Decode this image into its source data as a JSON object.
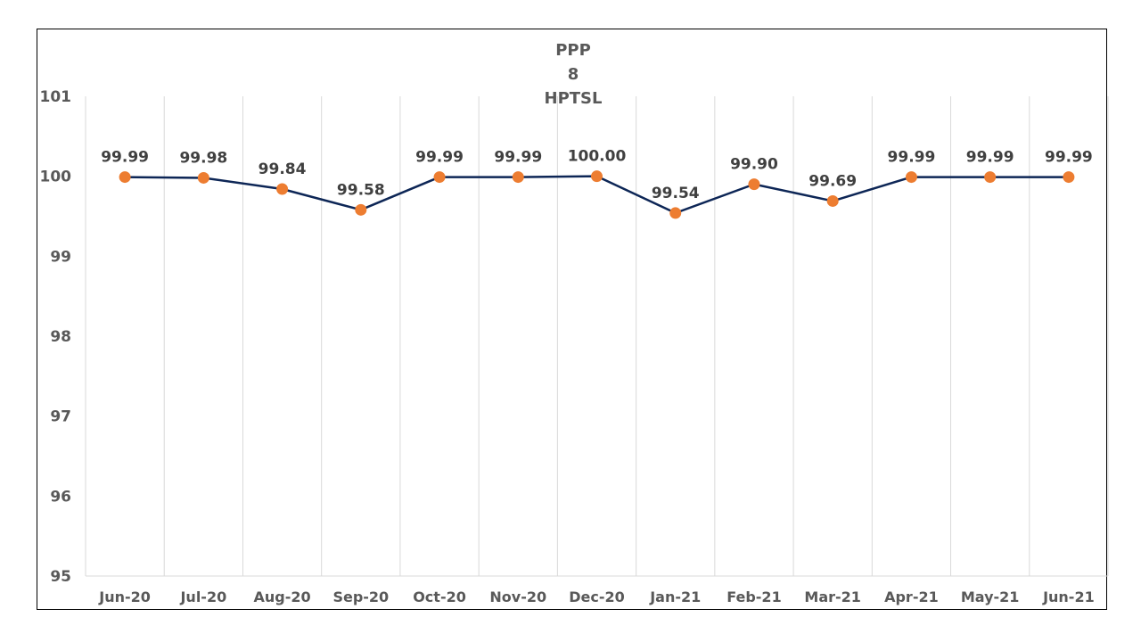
{
  "chart_data": {
    "type": "line",
    "title_lines": [
      "PPP",
      "8",
      "HPTSL"
    ],
    "categories": [
      "Jun-20",
      "Jul-20",
      "Aug-20",
      "Sep-20",
      "Oct-20",
      "Nov-20",
      "Dec-20",
      "Jan-21",
      "Feb-21",
      "Mar-21",
      "Apr-21",
      "May-21",
      "Jun-21"
    ],
    "values": [
      99.99,
      99.98,
      99.84,
      99.58,
      99.99,
      99.99,
      100.0,
      99.54,
      99.9,
      99.69,
      99.99,
      99.99,
      99.99
    ],
    "data_labels": [
      "99.99",
      "99.98",
      "99.84",
      "99.58",
      "99.99",
      "99.99",
      "100.00",
      "99.54",
      "99.90",
      "99.69",
      "99.99",
      "99.99",
      "99.99"
    ],
    "y_ticks": [
      "95",
      "96",
      "97",
      "98",
      "99",
      "100",
      "101"
    ],
    "ylim": [
      95,
      101
    ],
    "grid": "vertical",
    "legend": "none",
    "line_color": "#0d2656",
    "marker_color": "#ed7d31"
  }
}
